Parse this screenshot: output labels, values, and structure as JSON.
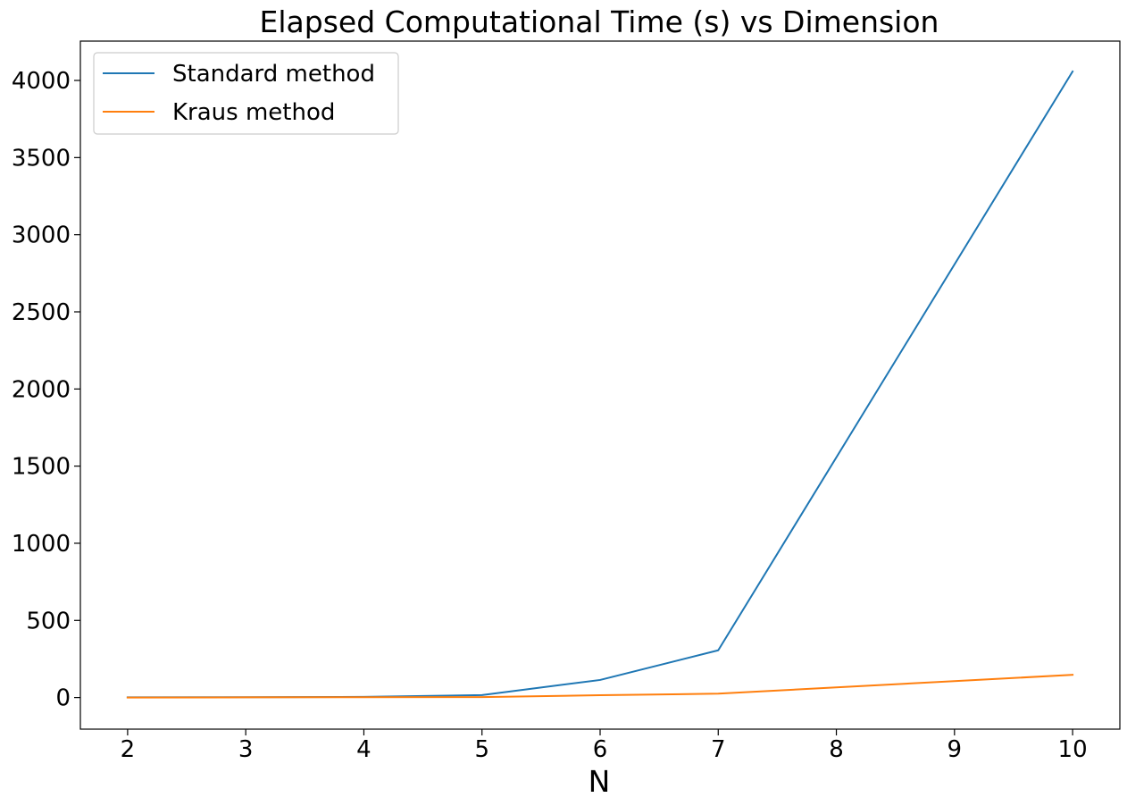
{
  "chart_data": {
    "type": "line",
    "title": "Elapsed Computational Time (s) vs Dimension",
    "xlabel": "N",
    "ylabel": "",
    "x": [
      2,
      3,
      4,
      5,
      6,
      7,
      10
    ],
    "xticks": [
      "2",
      "3",
      "4",
      "5",
      "6",
      "7",
      "8",
      "9",
      "10"
    ],
    "yticks": [
      "0",
      "500",
      "1000",
      "1500",
      "2000",
      "2500",
      "3000",
      "3500",
      "4000"
    ],
    "xlim": [
      1.6,
      10.4
    ],
    "ylim": [
      -205,
      4255
    ],
    "grid": false,
    "legend_position": "top-left",
    "series": [
      {
        "name": "Standard method",
        "color": "#1f77b4",
        "values": [
          1,
          2,
          4,
          16,
          114,
          306,
          4058
        ]
      },
      {
        "name": "Kraus method",
        "color": "#ff7f0e",
        "values": [
          0,
          1,
          2,
          3,
          15,
          25,
          147
        ]
      }
    ]
  }
}
